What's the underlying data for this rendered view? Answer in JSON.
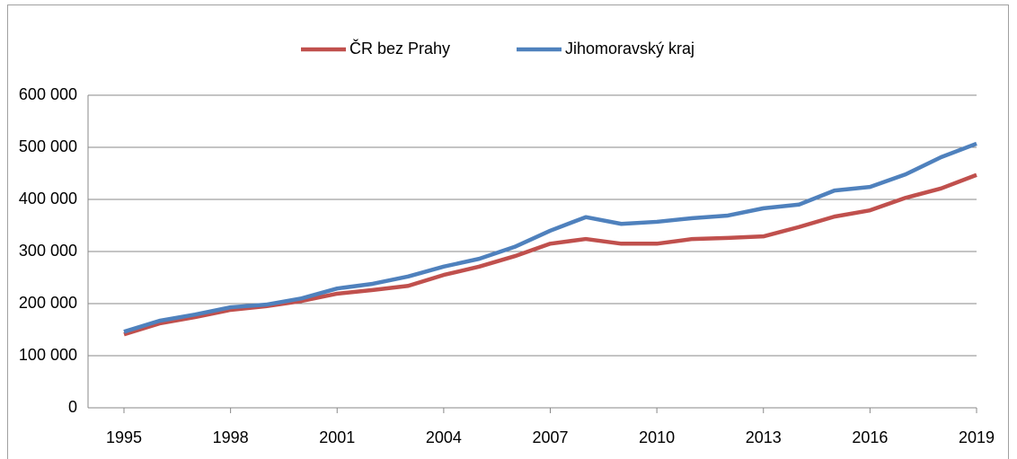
{
  "chart_data": {
    "type": "line",
    "x": [
      1995,
      1996,
      1997,
      1998,
      1999,
      2000,
      2001,
      2002,
      2003,
      2004,
      2005,
      2006,
      2007,
      2008,
      2009,
      2010,
      2011,
      2012,
      2013,
      2014,
      2015,
      2016,
      2017,
      2018,
      2019
    ],
    "series": [
      {
        "name": "ČR bez Prahy",
        "color": "#c0504d",
        "values": [
          141000,
          162000,
          174000,
          188000,
          195000,
          205000,
          219000,
          226000,
          234000,
          255000,
          271000,
          291000,
          315000,
          324000,
          315000,
          315000,
          324000,
          326000,
          329000,
          347000,
          367000,
          379000,
          403000,
          421000,
          447000
        ]
      },
      {
        "name": "Jihomoravský kraj",
        "color": "#4f81bd",
        "values": [
          146000,
          167000,
          179000,
          193000,
          198000,
          210000,
          229000,
          238000,
          252000,
          271000,
          286000,
          309000,
          340000,
          366000,
          353000,
          357000,
          364000,
          369000,
          383000,
          390000,
          417000,
          424000,
          448000,
          481000,
          507000
        ]
      }
    ],
    "xlim": [
      1995,
      2019
    ],
    "xticks": [
      1995,
      1998,
      2001,
      2004,
      2007,
      2010,
      2013,
      2016,
      2019
    ],
    "ylim": [
      0,
      600000
    ],
    "yticks": [
      0,
      {
        "value": 100000,
        "label": "100 000"
      },
      {
        "value": 200000,
        "label": "200 000"
      },
      {
        "value": 300000,
        "label": "300 000"
      },
      {
        "value": 400000,
        "label": "400 000"
      },
      {
        "value": 500000,
        "label": "500 000"
      },
      {
        "value": 600000,
        "label": "600 000"
      }
    ],
    "grid": true,
    "legend": "top"
  }
}
